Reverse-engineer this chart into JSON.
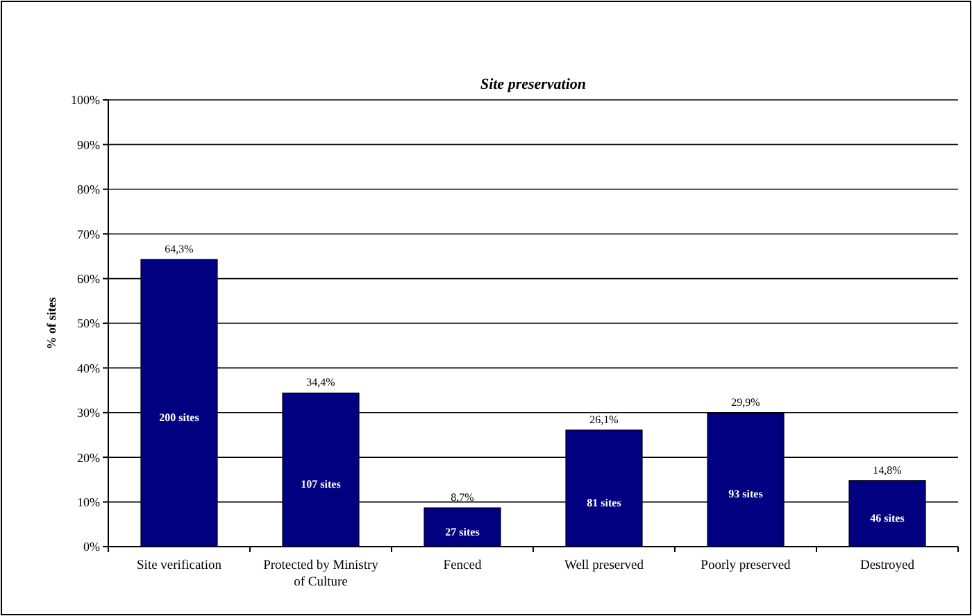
{
  "chart_data": {
    "type": "bar",
    "title": "Site preservation",
    "ylabel": "% of sites",
    "categories": [
      "Site verification",
      "Protected by Ministry of Culture",
      "Fenced",
      "Well preserved",
      "Poorly preserved",
      "Destroyed"
    ],
    "values": [
      64.3,
      34.4,
      8.7,
      26.1,
      29.9,
      14.8
    ],
    "value_labels": [
      "64,3%",
      "34,4%",
      "8,7%",
      "26,1%",
      "29,9%",
      "14,8%"
    ],
    "color": "#000080",
    "ylim": [
      0,
      100
    ],
    "yticks": [
      {
        "value": 0,
        "label": "0%"
      },
      {
        "value": 10,
        "label": "10%"
      },
      {
        "value": 20,
        "label": "20%"
      },
      {
        "value": 30,
        "label": "30%"
      },
      {
        "value": 40,
        "label": "40%"
      },
      {
        "value": 50,
        "label": "50%"
      },
      {
        "value": 60,
        "label": "60%"
      },
      {
        "value": 70,
        "label": "70%"
      },
      {
        "value": 80,
        "label": "80%"
      },
      {
        "value": 90,
        "label": "90%"
      },
      {
        "value": 100,
        "label": "100%"
      }
    ],
    "grid": "y",
    "annotations": [
      "200 sites",
      "107 sites",
      "27 sites",
      "81 sites",
      "93 sites",
      "46 sites"
    ]
  }
}
